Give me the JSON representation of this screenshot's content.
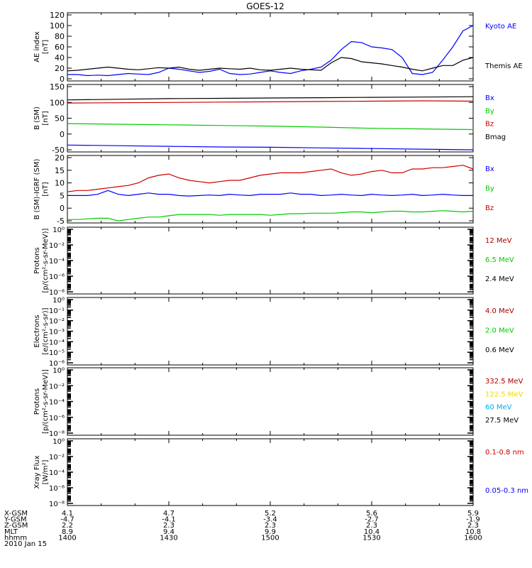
{
  "title": "GOES-12",
  "colors": {
    "black": "#000000",
    "blue": "#0000ff",
    "red": "#cc0000",
    "green": "#00cc00",
    "darkred": "#aa0000",
    "yellow": "#e8e000",
    "cyan": "#00aaee"
  },
  "chart_data": [
    {
      "type": "line",
      "panel": "ae",
      "ylabel": "AE index",
      "unit": "[nT]",
      "ylim": [
        0,
        120
      ],
      "yticks": [
        "0",
        "20",
        "40",
        "60",
        "80",
        "100",
        "120"
      ],
      "x": [
        1400,
        1403,
        1406,
        1409,
        1412,
        1415,
        1418,
        1421,
        1424,
        1427,
        1430,
        1433,
        1436,
        1439,
        1442,
        1445,
        1448,
        1451,
        1454,
        1457,
        1500,
        1503,
        1506,
        1509,
        1512,
        1515,
        1518,
        1521,
        1524,
        1527,
        1530,
        1533,
        1536,
        1539,
        1542,
        1545,
        1548,
        1551,
        1554,
        1557,
        1600
      ],
      "series": [
        {
          "name": "Kyoto AE",
          "color": "blue",
          "values": [
            8,
            8,
            6,
            7,
            6,
            8,
            10,
            9,
            8,
            12,
            20,
            18,
            15,
            12,
            14,
            18,
            10,
            8,
            9,
            12,
            15,
            12,
            10,
            15,
            18,
            22,
            35,
            55,
            70,
            68,
            60,
            58,
            55,
            40,
            10,
            8,
            12,
            35,
            60,
            90,
            100
          ]
        },
        {
          "name": "Themis AE",
          "color": "black",
          "values": [
            15,
            16,
            18,
            20,
            22,
            20,
            18,
            17,
            19,
            21,
            20,
            22,
            18,
            16,
            18,
            20,
            19,
            18,
            20,
            17,
            16,
            18,
            20,
            18,
            17,
            16,
            30,
            40,
            38,
            32,
            30,
            28,
            25,
            22,
            18,
            15,
            20,
            25,
            25,
            35,
            40
          ]
        }
      ]
    },
    {
      "type": "line",
      "panel": "b",
      "ylabel": "B (SM)",
      "unit": "[nT]",
      "ylim": [
        -50,
        150
      ],
      "yticks": [
        "-50",
        "0",
        "50",
        "100",
        "150"
      ],
      "x": [
        1400,
        1415,
        1430,
        1445,
        1500,
        1515,
        1530,
        1545,
        1600
      ],
      "series": [
        {
          "name": "Bx",
          "color": "blue",
          "values": [
            -35,
            -37,
            -39,
            -41,
            -42,
            -44,
            -46,
            -48,
            -50
          ]
        },
        {
          "name": "By",
          "color": "green",
          "values": [
            33,
            31,
            29,
            27,
            25,
            22,
            18,
            16,
            14
          ]
        },
        {
          "name": "Bz",
          "color": "red",
          "values": [
            98,
            99,
            100,
            101,
            102,
            103,
            104,
            105,
            104
          ]
        },
        {
          "name": "Bmag",
          "color": "black",
          "values": [
            108,
            110,
            112,
            113,
            114,
            115,
            116,
            117,
            118
          ]
        }
      ]
    },
    {
      "type": "line",
      "panel": "db",
      "ylabel": "B (SM)-IGRF (SM)",
      "unit": "[nT]",
      "ylim": [
        -5,
        20
      ],
      "yticks": [
        "-5",
        "0",
        "5",
        "10",
        "15",
        "20"
      ],
      "x": [
        1400,
        1403,
        1406,
        1409,
        1412,
        1415,
        1418,
        1421,
        1424,
        1427,
        1430,
        1433,
        1436,
        1439,
        1442,
        1445,
        1448,
        1451,
        1454,
        1457,
        1500,
        1503,
        1506,
        1509,
        1512,
        1515,
        1518,
        1521,
        1524,
        1527,
        1530,
        1533,
        1536,
        1539,
        1542,
        1545,
        1548,
        1551,
        1554,
        1557,
        1600
      ],
      "series": [
        {
          "name": "Bx",
          "color": "blue",
          "values": [
            5,
            5,
            5,
            5.5,
            7,
            5.5,
            5,
            5.5,
            6,
            5.5,
            5.5,
            5,
            4.8,
            5,
            5.2,
            5,
            5.5,
            5.2,
            5,
            5.5,
            5.5,
            5.5,
            6,
            5.5,
            5.5,
            5,
            5.2,
            5.5,
            5.2,
            5,
            5.5,
            5.2,
            5,
            5.2,
            5.5,
            5,
            5.2,
            5.5,
            5.2,
            5,
            5
          ]
        },
        {
          "name": "By",
          "color": "green",
          "values": [
            -4.5,
            -4.5,
            -4.2,
            -4,
            -4,
            -5,
            -4.5,
            -4,
            -3.5,
            -3.5,
            -3,
            -2.5,
            -2.5,
            -2.5,
            -2.5,
            -2.8,
            -2.5,
            -2.5,
            -2.5,
            -2.5,
            -2.8,
            -2.5,
            -2.2,
            -2.2,
            -2,
            -2,
            -2,
            -1.8,
            -1.5,
            -1.5,
            -1.8,
            -1.5,
            -1.2,
            -1.2,
            -1.5,
            -1.5,
            -1.2,
            -1,
            -1.2,
            -1.5,
            -1.2
          ]
        },
        {
          "name": "Bz",
          "color": "red",
          "values": [
            6.5,
            7,
            7,
            7.5,
            8,
            8.5,
            9,
            10,
            12,
            13,
            13.5,
            12,
            11,
            10.5,
            10,
            10.5,
            11,
            11,
            12,
            13,
            13.5,
            14,
            14,
            14,
            14.5,
            15,
            15.5,
            14,
            13,
            13.5,
            14.5,
            15,
            14,
            14,
            15.5,
            15.5,
            16,
            16,
            16.5,
            17,
            15.5
          ]
        }
      ]
    },
    {
      "type": "line",
      "panel": "protons1",
      "ylabel": "Protons",
      "unit": "[p/(cm²-s-sr-MeV)]",
      "scale": "log",
      "yticks": [
        "10⁰",
        "10⁻²",
        "10⁻⁴",
        "10⁻⁶",
        "10⁻⁸"
      ],
      "series": [
        {
          "name": "12 MeV",
          "color": "darkred"
        },
        {
          "name": "6.5 MeV",
          "color": "green"
        },
        {
          "name": "2.4 MeV",
          "color": "black"
        }
      ]
    },
    {
      "type": "line",
      "panel": "electrons",
      "ylabel": "Electrons",
      "unit": "[e/(cm²-s-sr)]",
      "scale": "log",
      "yticks": [
        "10⁰",
        "10⁻¹",
        "10⁻²",
        "10⁻³",
        "10⁻⁴",
        "10⁻⁵",
        "10⁻⁶"
      ],
      "series": [
        {
          "name": "4.0 MeV",
          "color": "darkred"
        },
        {
          "name": "2.0 MeV",
          "color": "green"
        },
        {
          "name": "0.6 MeV",
          "color": "black"
        }
      ]
    },
    {
      "type": "line",
      "panel": "protons2",
      "ylabel": "Protons",
      "unit": "[p/(cm²-s-sr-MeV)]",
      "scale": "log",
      "yticks": [
        "10⁰",
        "10⁻²",
        "10⁻⁴",
        "10⁻⁶",
        "10⁻⁸"
      ],
      "series": [
        {
          "name": "332.5 MeV",
          "color": "darkred"
        },
        {
          "name": "122.5 MeV",
          "color": "yellow"
        },
        {
          "name": "60 MeV",
          "color": "cyan"
        },
        {
          "name": "27.5 MeV",
          "color": "black"
        }
      ]
    },
    {
      "type": "line",
      "panel": "xray",
      "ylabel": "Xray Flux",
      "unit": "[W/m²]",
      "scale": "log",
      "yticks": [
        "10⁰",
        "10⁻²",
        "10⁻⁴",
        "10⁻⁶",
        "10⁻⁸"
      ],
      "series": [
        {
          "name": "0.1-0.8 nm",
          "color": "red"
        },
        {
          "name": "0.05-0.3 nm",
          "color": "blue"
        }
      ]
    }
  ],
  "xaxis": {
    "row_labels": [
      "X-GSM",
      "Y-GSM",
      "Z-GSM",
      "MLT",
      "hhmm"
    ],
    "columns": [
      [
        "4.1",
        "-4.7",
        "2.2",
        "8.9",
        "1400"
      ],
      [
        "4.7",
        "-4.1",
        "2.3",
        "9.4",
        "1430"
      ],
      [
        "5.2",
        "-3.4",
        "2.3",
        "9.9",
        "1500"
      ],
      [
        "5.6",
        "-2.7",
        "2.3",
        "10.4",
        "1530"
      ],
      [
        "5.9",
        "-1.9",
        "2.3",
        "10.8",
        "1600"
      ]
    ],
    "date": "2010 Jan 15"
  }
}
